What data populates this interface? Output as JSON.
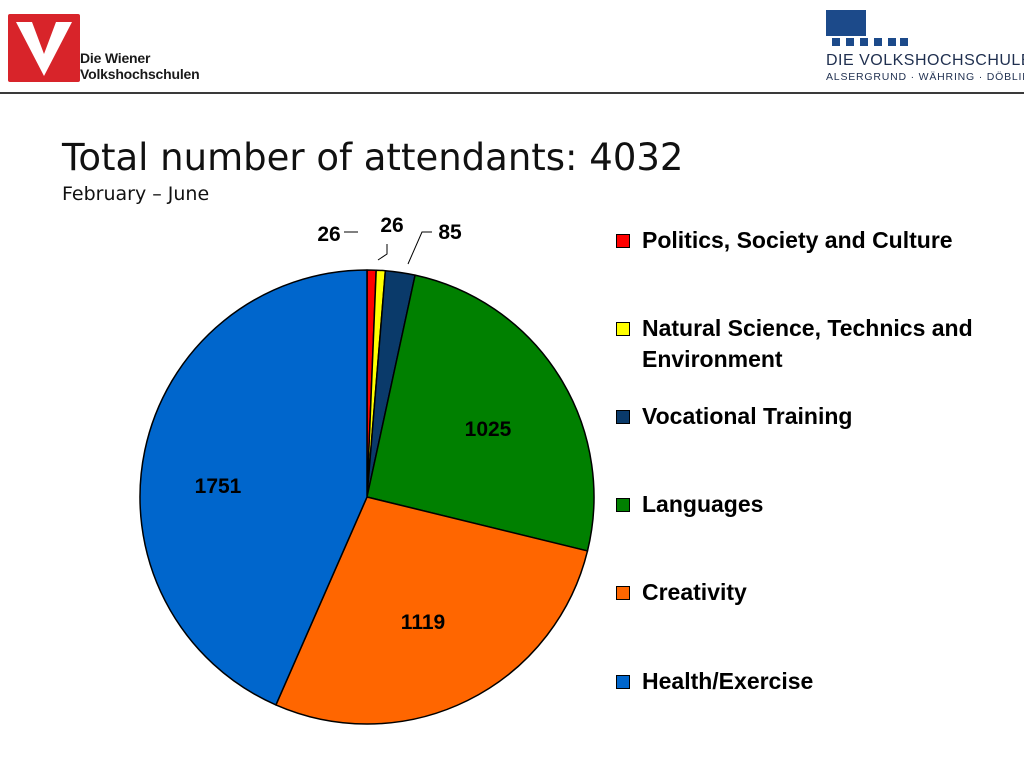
{
  "header": {
    "left_logo_line1": "Die Wiener",
    "left_logo_line2": "Volkshochschulen",
    "right_logo_title": "DIE VOLKSHOCHSCHULE",
    "right_logo_subtitle": "ALSERGRUND · WÄHRING · DÖBLING"
  },
  "chart_data": {
    "type": "pie",
    "title": "Total number of attendants: 4032",
    "subtitle": "February – June",
    "categories": [
      "Politics, Society and Culture",
      "Natural Science, Technics and Environment",
      "Vocational Training",
      "Languages",
      "Creativity",
      "Health/Exercise"
    ],
    "values": [
      26,
      26,
      85,
      1025,
      1119,
      1751
    ],
    "data_labels": [
      "26",
      "26",
      "85",
      "1025",
      "1119",
      "1751"
    ],
    "colors": [
      "#ff0000",
      "#ffff00",
      "#0a3a6a",
      "#008000",
      "#ff6600",
      "#0066cc"
    ],
    "start_angle_deg": 0,
    "direction": "clockwise",
    "legend_position": "right"
  }
}
